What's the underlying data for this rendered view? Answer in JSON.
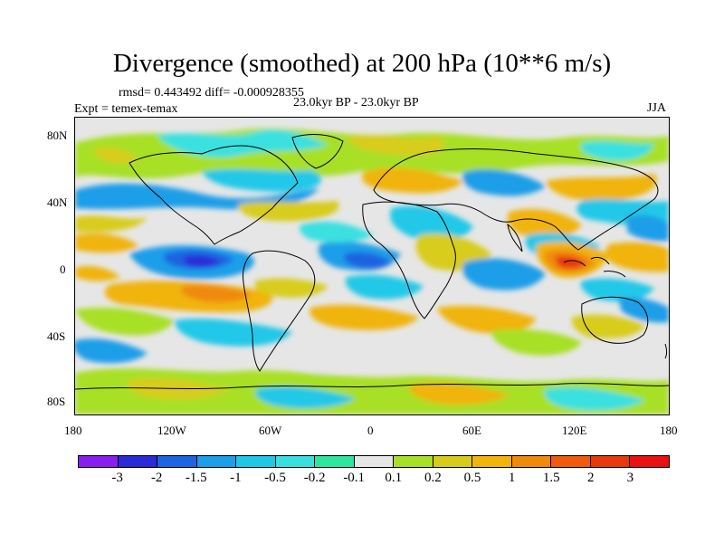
{
  "title": "Divergence (smoothed) at 200 hPa (10**6 m/s)",
  "stats": "rmsd= 0.443492  diff= -0.000928355",
  "experiment": "Expt = temex-temax",
  "period": "23.0kyr BP - 23.0kyr BP",
  "season": "JJA",
  "lat_ticks": [
    "80N",
    "40N",
    "0",
    "40S",
    "80S"
  ],
  "lon_ticks": [
    "180",
    "120W",
    "60W",
    "0",
    "60E",
    "120E",
    "180"
  ],
  "colorbar": {
    "labels": [
      "-3",
      "-2",
      "-1.5",
      "-1",
      "-0.5",
      "-0.2",
      "-0.1",
      "0.1",
      "0.2",
      "0.5",
      "1",
      "1.5",
      "2",
      "3"
    ],
    "colors": [
      "#8a1ef0",
      "#2a2ad8",
      "#1c64e0",
      "#1c9ee8",
      "#20c8e8",
      "#3ae0e0",
      "#2fe6a0",
      "#e6e6e6",
      "#a8e028",
      "#d8cc1a",
      "#f0b40a",
      "#f08a0a",
      "#f05a0a",
      "#e8380e",
      "#e81010"
    ]
  }
}
